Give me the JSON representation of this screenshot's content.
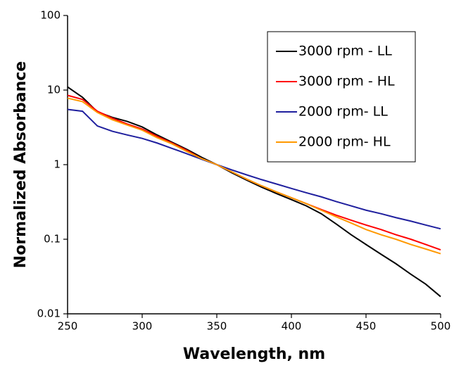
{
  "chart_data": {
    "type": "line",
    "x_label": "Wavelength, nm",
    "y_label": "Normalized Absorbance",
    "log_y": true,
    "grid": false,
    "legend": "upper right",
    "xlim": [
      250,
      500
    ],
    "xticks": [
      250,
      300,
      350,
      400,
      450,
      500
    ],
    "ylim": [
      0.01,
      100
    ],
    "yticks": [
      0.01,
      0.1,
      1,
      10,
      100
    ],
    "x": [
      250,
      260,
      270,
      280,
      290,
      300,
      310,
      320,
      330,
      340,
      350,
      360,
      370,
      380,
      390,
      400,
      410,
      420,
      430,
      440,
      450,
      460,
      470,
      480,
      490,
      500
    ],
    "series": [
      {
        "name": "3000 rpm - LL",
        "color": "#000000",
        "values": [
          11,
          8,
          5.1,
          4.3,
          3.8,
          3.2,
          2.5,
          2.0,
          1.6,
          1.25,
          1.0,
          0.78,
          0.62,
          0.5,
          0.41,
          0.34,
          0.28,
          0.22,
          0.16,
          0.115,
          0.085,
          0.063,
          0.047,
          0.034,
          0.025,
          0.017
        ]
      },
      {
        "name": "3000 rpm - HL",
        "color": "#ff0000",
        "values": [
          8.5,
          7.5,
          5.2,
          4.2,
          3.5,
          3.0,
          2.4,
          1.95,
          1.55,
          1.2,
          1.0,
          0.8,
          0.64,
          0.52,
          0.43,
          0.36,
          0.3,
          0.25,
          0.21,
          0.18,
          0.155,
          0.135,
          0.115,
          0.1,
          0.085,
          0.072
        ]
      },
      {
        "name": "2000 rpm- LL",
        "color": "#1f1f9e",
        "values": [
          5.5,
          5.2,
          3.3,
          2.8,
          2.5,
          2.25,
          1.95,
          1.65,
          1.4,
          1.18,
          1.0,
          0.85,
          0.73,
          0.63,
          0.55,
          0.48,
          0.42,
          0.37,
          0.32,
          0.28,
          0.245,
          0.22,
          0.195,
          0.175,
          0.155,
          0.138
        ]
      },
      {
        "name": "2000 rpm- HL",
        "color": "#ff9900",
        "values": [
          7.8,
          7.0,
          5.0,
          4.0,
          3.4,
          2.9,
          2.3,
          1.9,
          1.5,
          1.2,
          1.0,
          0.8,
          0.64,
          0.52,
          0.43,
          0.36,
          0.3,
          0.245,
          0.2,
          0.165,
          0.135,
          0.115,
          0.1,
          0.085,
          0.074,
          0.064
        ]
      }
    ]
  }
}
